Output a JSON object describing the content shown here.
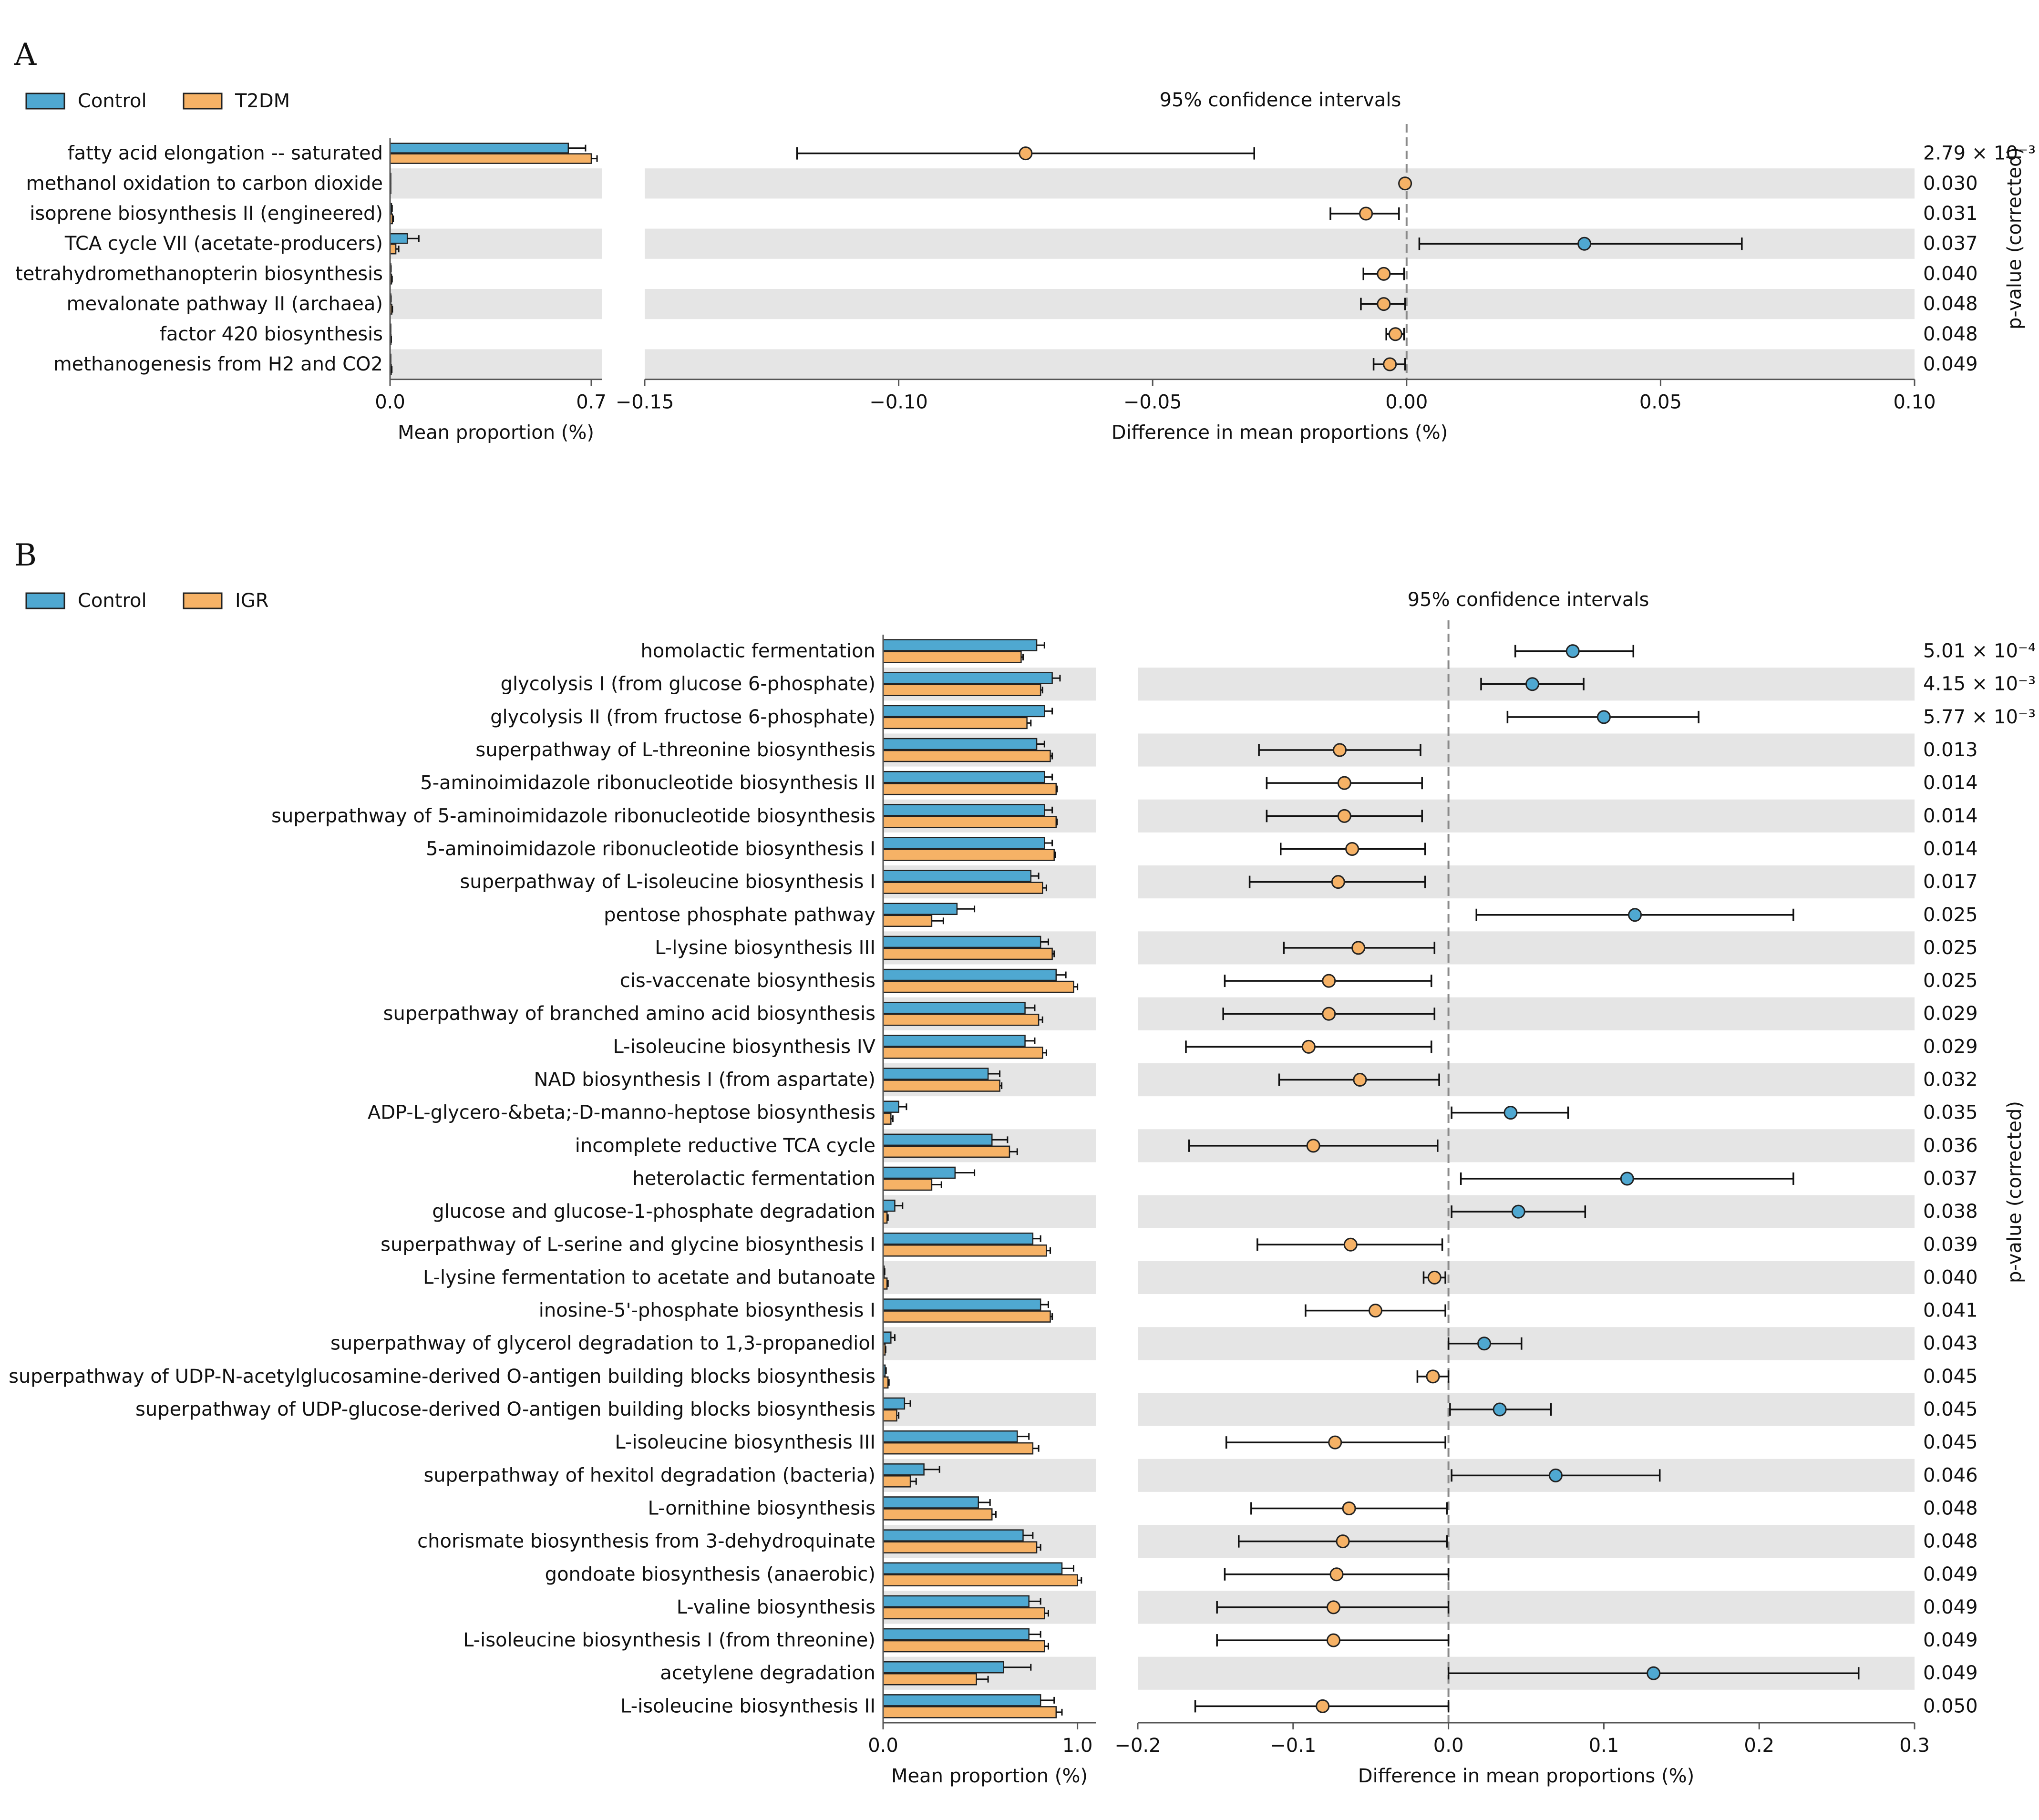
{
  "colors": {
    "control": "#4fa8d1",
    "t2dm": "#f6b266",
    "igr": "#f6b266",
    "row_shade": "#e5e5e5",
    "axis": "#555555",
    "text": "#111111",
    "zero_line": "#8a8a8a"
  },
  "chart_data": [
    {
      "type": "bar",
      "panel_label": "A",
      "legend": [
        {
          "name": "Control",
          "color": "#4fa8d1"
        },
        {
          "name": "T2DM",
          "color": "#f6b266"
        }
      ],
      "ci_title": "95% confidence intervals",
      "mean_axis": {
        "label": "Mean proportion (%)",
        "ticks": [
          "0.0",
          "0.7"
        ],
        "range": [
          0,
          0.7
        ]
      },
      "diff_axis": {
        "label": "Difference in mean proportions (%)",
        "ticks": [
          "−0.15",
          "−0.10",
          "−0.05",
          "0.00",
          "0.05",
          "0.10"
        ],
        "range": [
          -0.15,
          0.1
        ]
      },
      "pvalue_label": "p-value (corrected)",
      "rows": [
        {
          "name": "fatty acid elongation -- saturated",
          "control": 0.62,
          "control_err": 0.06,
          "case": 0.7,
          "case_err": 0.02,
          "diff": -0.075,
          "ci_low": -0.12,
          "ci_high": -0.03,
          "favors": "case",
          "p": "2.79 × 10⁻³"
        },
        {
          "name": "methanol oxidation to carbon dioxide",
          "control": 0.0,
          "control_err": 0.0,
          "case": 0.0,
          "case_err": 0.0,
          "diff": -0.0003,
          "ci_low": -0.0006,
          "ci_high": 0.0,
          "favors": "case",
          "p": "0.030"
        },
        {
          "name": "isoprene biosynthesis II (engineered)",
          "control": 0.005,
          "control_err": 0.002,
          "case": 0.008,
          "case_err": 0.003,
          "diff": -0.008,
          "ci_low": -0.015,
          "ci_high": -0.0015,
          "favors": "case",
          "p": "0.031"
        },
        {
          "name": "TCA cycle VII (acetate-producers)",
          "control": 0.06,
          "control_err": 0.04,
          "case": 0.02,
          "case_err": 0.01,
          "diff": 0.035,
          "ci_low": 0.0025,
          "ci_high": 0.066,
          "favors": "control",
          "p": "0.037"
        },
        {
          "name": "tetrahydromethanopterin biosynthesis",
          "control": 0.002,
          "control_err": 0.001,
          "case": 0.005,
          "case_err": 0.002,
          "diff": -0.0045,
          "ci_low": -0.0085,
          "ci_high": -0.0005,
          "favors": "case",
          "p": "0.040"
        },
        {
          "name": "mevalonate pathway II (archaea)",
          "control": 0.002,
          "control_err": 0.001,
          "case": 0.006,
          "case_err": 0.002,
          "diff": -0.0045,
          "ci_low": -0.009,
          "ci_high": -0.0003,
          "favors": "case",
          "p": "0.048"
        },
        {
          "name": "factor 420 biosynthesis",
          "control": 0.001,
          "control_err": 0.0005,
          "case": 0.003,
          "case_err": 0.001,
          "diff": -0.0022,
          "ci_low": -0.004,
          "ci_high": -0.0005,
          "favors": "case",
          "p": "0.048"
        },
        {
          "name": "methanogenesis from H2 and CO2",
          "control": 0.001,
          "control_err": 0.0005,
          "case": 0.004,
          "case_err": 0.002,
          "diff": -0.0033,
          "ci_low": -0.0065,
          "ci_high": -0.0003,
          "favors": "case",
          "p": "0.049"
        }
      ]
    },
    {
      "type": "bar",
      "panel_label": "B",
      "legend": [
        {
          "name": "Control",
          "color": "#4fa8d1"
        },
        {
          "name": "IGR",
          "color": "#f6b266"
        }
      ],
      "ci_title": "95% confidence intervals",
      "mean_axis": {
        "label": "Mean proportion (%)",
        "ticks": [
          "0.0",
          "1.0"
        ],
        "range": [
          0,
          1.05
        ]
      },
      "diff_axis": {
        "label": "Difference in mean proportions (%)",
        "ticks": [
          "−0.2",
          "−0.1",
          "0.0",
          "0.1",
          "0.2",
          "0.3"
        ],
        "range": [
          -0.2,
          0.3
        ]
      },
      "pvalue_label": "p-value (corrected)",
      "rows": [
        {
          "name": "homolactic fermentation",
          "control": 0.79,
          "control_err": 0.04,
          "case": 0.71,
          "case_err": 0.01,
          "diff": 0.08,
          "ci_low": 0.043,
          "ci_high": 0.119,
          "favors": "control",
          "p": "5.01 × 10⁻⁴"
        },
        {
          "name": "glycolysis I (from glucose 6-phosphate)",
          "control": 0.87,
          "control_err": 0.04,
          "case": 0.81,
          "case_err": 0.01,
          "diff": 0.054,
          "ci_low": 0.021,
          "ci_high": 0.087,
          "favors": "control",
          "p": "4.15 × 10⁻³"
        },
        {
          "name": "glycolysis II (from fructose 6-phosphate)",
          "control": 0.83,
          "control_err": 0.04,
          "case": 0.74,
          "case_err": 0.02,
          "diff": 0.1,
          "ci_low": 0.038,
          "ci_high": 0.161,
          "favors": "control",
          "p": "5.77 × 10⁻³"
        },
        {
          "name": "superpathway of L-threonine biosynthesis",
          "control": 0.79,
          "control_err": 0.04,
          "case": 0.86,
          "case_err": 0.01,
          "diff": -0.07,
          "ci_low": -0.122,
          "ci_high": -0.018,
          "favors": "case",
          "p": "0.013"
        },
        {
          "name": "5-aminoimidazole ribonucleotide biosynthesis II",
          "control": 0.83,
          "control_err": 0.04,
          "case": 0.89,
          "case_err": 0.005,
          "diff": -0.067,
          "ci_low": -0.117,
          "ci_high": -0.017,
          "favors": "case",
          "p": "0.014"
        },
        {
          "name": "superpathway of 5-aminoimidazole ribonucleotide biosynthesis",
          "control": 0.83,
          "control_err": 0.04,
          "case": 0.89,
          "case_err": 0.005,
          "diff": -0.067,
          "ci_low": -0.117,
          "ci_high": -0.017,
          "favors": "case",
          "p": "0.014"
        },
        {
          "name": "5-aminoimidazole ribonucleotide biosynthesis I",
          "control": 0.83,
          "control_err": 0.04,
          "case": 0.88,
          "case_err": 0.005,
          "diff": -0.062,
          "ci_low": -0.108,
          "ci_high": -0.015,
          "favors": "case",
          "p": "0.014"
        },
        {
          "name": "superpathway of L-isoleucine biosynthesis I",
          "control": 0.76,
          "control_err": 0.04,
          "case": 0.82,
          "case_err": 0.02,
          "diff": -0.071,
          "ci_low": -0.128,
          "ci_high": -0.015,
          "favors": "case",
          "p": "0.017"
        },
        {
          "name": "pentose phosphate pathway",
          "control": 0.38,
          "control_err": 0.09,
          "case": 0.25,
          "case_err": 0.06,
          "diff": 0.12,
          "ci_low": 0.018,
          "ci_high": 0.222,
          "favors": "control",
          "p": "0.025"
        },
        {
          "name": "L-lysine biosynthesis III",
          "control": 0.81,
          "control_err": 0.04,
          "case": 0.87,
          "case_err": 0.01,
          "diff": -0.058,
          "ci_low": -0.106,
          "ci_high": -0.009,
          "favors": "case",
          "p": "0.025"
        },
        {
          "name": "cis-vaccenate biosynthesis",
          "control": 0.89,
          "control_err": 0.05,
          "case": 0.98,
          "case_err": 0.02,
          "diff": -0.077,
          "ci_low": -0.144,
          "ci_high": -0.011,
          "favors": "case",
          "p": "0.025"
        },
        {
          "name": "superpathway of branched amino acid biosynthesis",
          "control": 0.73,
          "control_err": 0.05,
          "case": 0.8,
          "case_err": 0.02,
          "diff": -0.077,
          "ci_low": -0.145,
          "ci_high": -0.009,
          "favors": "case",
          "p": "0.029"
        },
        {
          "name": "L-isoleucine biosynthesis IV",
          "control": 0.73,
          "control_err": 0.05,
          "case": 0.82,
          "case_err": 0.02,
          "diff": -0.09,
          "ci_low": -0.169,
          "ci_high": -0.011,
          "favors": "case",
          "p": "0.029"
        },
        {
          "name": "NAD biosynthesis I (from aspartate)",
          "control": 0.54,
          "control_err": 0.06,
          "case": 0.6,
          "case_err": 0.01,
          "diff": -0.057,
          "ci_low": -0.109,
          "ci_high": -0.006,
          "favors": "case",
          "p": "0.032"
        },
        {
          "name": "ADP-L-glycero-&beta;-D-manno-heptose biosynthesis",
          "control": 0.08,
          "control_err": 0.04,
          "case": 0.04,
          "case_err": 0.01,
          "diff": 0.04,
          "ci_low": 0.002,
          "ci_high": 0.077,
          "favors": "control",
          "p": "0.035"
        },
        {
          "name": "incomplete reductive TCA cycle",
          "control": 0.56,
          "control_err": 0.08,
          "case": 0.65,
          "case_err": 0.04,
          "diff": -0.087,
          "ci_low": -0.167,
          "ci_high": -0.007,
          "favors": "case",
          "p": "0.036"
        },
        {
          "name": "heterolactic fermentation",
          "control": 0.37,
          "control_err": 0.1,
          "case": 0.25,
          "case_err": 0.05,
          "diff": 0.115,
          "ci_low": 0.008,
          "ci_high": 0.222,
          "favors": "control",
          "p": "0.037"
        },
        {
          "name": "glucose and glucose-1-phosphate degradation",
          "control": 0.06,
          "control_err": 0.04,
          "case": 0.02,
          "case_err": 0.005,
          "diff": 0.045,
          "ci_low": 0.002,
          "ci_high": 0.088,
          "favors": "control",
          "p": "0.038"
        },
        {
          "name": "superpathway of L-serine and glycine biosynthesis I",
          "control": 0.77,
          "control_err": 0.04,
          "case": 0.84,
          "case_err": 0.02,
          "diff": -0.063,
          "ci_low": -0.123,
          "ci_high": -0.004,
          "favors": "case",
          "p": "0.039"
        },
        {
          "name": "L-lysine fermentation to acetate and butanoate",
          "control": 0.005,
          "control_err": 0.003,
          "case": 0.02,
          "case_err": 0.005,
          "diff": -0.009,
          "ci_low": -0.016,
          "ci_high": -0.002,
          "favors": "case",
          "p": "0.040"
        },
        {
          "name": "inosine-5'-phosphate biosynthesis I",
          "control": 0.81,
          "control_err": 0.04,
          "case": 0.86,
          "case_err": 0.01,
          "diff": -0.047,
          "ci_low": -0.092,
          "ci_high": -0.002,
          "favors": "case",
          "p": "0.041"
        },
        {
          "name": "superpathway of glycerol degradation to 1,3-propanediol",
          "control": 0.04,
          "control_err": 0.02,
          "case": 0.01,
          "case_err": 0.003,
          "diff": 0.023,
          "ci_low": 0.0,
          "ci_high": 0.047,
          "favors": "control",
          "p": "0.043"
        },
        {
          "name": "superpathway of UDP-N-acetylglucosamine-derived O-antigen building blocks biosynthesis",
          "control": 0.01,
          "control_err": 0.005,
          "case": 0.025,
          "case_err": 0.005,
          "diff": -0.01,
          "ci_low": -0.02,
          "ci_high": 0.0,
          "favors": "case",
          "p": "0.045"
        },
        {
          "name": "superpathway of UDP-glucose-derived O-antigen building blocks biosynthesis",
          "control": 0.11,
          "control_err": 0.03,
          "case": 0.07,
          "case_err": 0.01,
          "diff": 0.033,
          "ci_low": 0.001,
          "ci_high": 0.066,
          "favors": "control",
          "p": "0.045"
        },
        {
          "name": "L-isoleucine biosynthesis III",
          "control": 0.69,
          "control_err": 0.06,
          "case": 0.77,
          "case_err": 0.03,
          "diff": -0.073,
          "ci_low": -0.143,
          "ci_high": -0.002,
          "favors": "case",
          "p": "0.045"
        },
        {
          "name": "superpathway of hexitol degradation (bacteria)",
          "control": 0.21,
          "control_err": 0.08,
          "case": 0.14,
          "case_err": 0.03,
          "diff": 0.069,
          "ci_low": 0.002,
          "ci_high": 0.136,
          "favors": "control",
          "p": "0.046"
        },
        {
          "name": "L-ornithine biosynthesis",
          "control": 0.49,
          "control_err": 0.06,
          "case": 0.56,
          "case_err": 0.02,
          "diff": -0.064,
          "ci_low": -0.127,
          "ci_high": -0.001,
          "favors": "case",
          "p": "0.048"
        },
        {
          "name": "chorismate biosynthesis from 3-dehydroquinate",
          "control": 0.72,
          "control_err": 0.05,
          "case": 0.79,
          "case_err": 0.02,
          "diff": -0.068,
          "ci_low": -0.135,
          "ci_high": -0.001,
          "favors": "case",
          "p": "0.048"
        },
        {
          "name": "gondoate biosynthesis (anaerobic)",
          "control": 0.92,
          "control_err": 0.06,
          "case": 1.0,
          "case_err": 0.02,
          "diff": -0.072,
          "ci_low": -0.144,
          "ci_high": 0.0,
          "favors": "case",
          "p": "0.049"
        },
        {
          "name": "L-valine biosynthesis",
          "control": 0.75,
          "control_err": 0.06,
          "case": 0.83,
          "case_err": 0.02,
          "diff": -0.074,
          "ci_low": -0.149,
          "ci_high": 0.0,
          "favors": "case",
          "p": "0.049"
        },
        {
          "name": "L-isoleucine biosynthesis I (from threonine)",
          "control": 0.75,
          "control_err": 0.06,
          "case": 0.83,
          "case_err": 0.02,
          "diff": -0.074,
          "ci_low": -0.149,
          "ci_high": 0.0,
          "favors": "case",
          "p": "0.049"
        },
        {
          "name": "acetylene degradation",
          "control": 0.62,
          "control_err": 0.14,
          "case": 0.48,
          "case_err": 0.06,
          "diff": 0.132,
          "ci_low": 0.0,
          "ci_high": 0.264,
          "favors": "control",
          "p": "0.049"
        },
        {
          "name": "L-isoleucine biosynthesis II",
          "control": 0.81,
          "control_err": 0.07,
          "case": 0.89,
          "case_err": 0.03,
          "diff": -0.081,
          "ci_low": -0.163,
          "ci_high": 0.0,
          "favors": "case",
          "p": "0.050"
        }
      ]
    }
  ]
}
